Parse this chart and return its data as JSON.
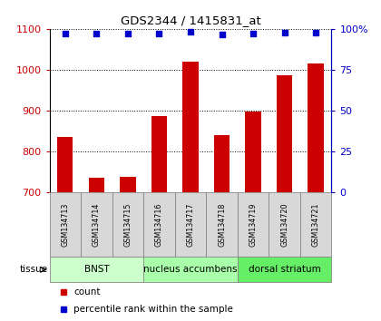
{
  "title": "GDS2344 / 1415831_at",
  "samples": [
    "GSM134713",
    "GSM134714",
    "GSM134715",
    "GSM134716",
    "GSM134717",
    "GSM134718",
    "GSM134719",
    "GSM134720",
    "GSM134721"
  ],
  "counts": [
    835,
    735,
    738,
    885,
    1020,
    840,
    898,
    987,
    1015
  ],
  "percentiles": [
    97.0,
    97.0,
    97.0,
    97.0,
    98.0,
    96.5,
    97.0,
    97.5,
    97.5
  ],
  "bar_color": "#cc0000",
  "dot_color": "#0000cc",
  "ylim_left": [
    700,
    1100
  ],
  "ylim_right": [
    0,
    100
  ],
  "yticks_left": [
    700,
    800,
    900,
    1000,
    1100
  ],
  "yticks_right": [
    0,
    25,
    50,
    75,
    100
  ],
  "ytick_labels_right": [
    "0",
    "25",
    "50",
    "75",
    "100%"
  ],
  "tissue_groups": [
    {
      "label": "BNST",
      "start": 0,
      "end": 3,
      "color": "#ccffcc"
    },
    {
      "label": "nucleus accumbens",
      "start": 3,
      "end": 6,
      "color": "#aaffaa"
    },
    {
      "label": "dorsal striatum",
      "start": 6,
      "end": 9,
      "color": "#66ee66"
    }
  ],
  "legend_count_color": "#cc0000",
  "legend_pct_color": "#0000cc",
  "legend_count_label": "count",
  "legend_pct_label": "percentile rank within the sample",
  "bg_color": "#ffffff",
  "sample_box_color": "#d8d8d8",
  "sample_box_edge": "#888888",
  "tissue_arrow_color": "#555555"
}
